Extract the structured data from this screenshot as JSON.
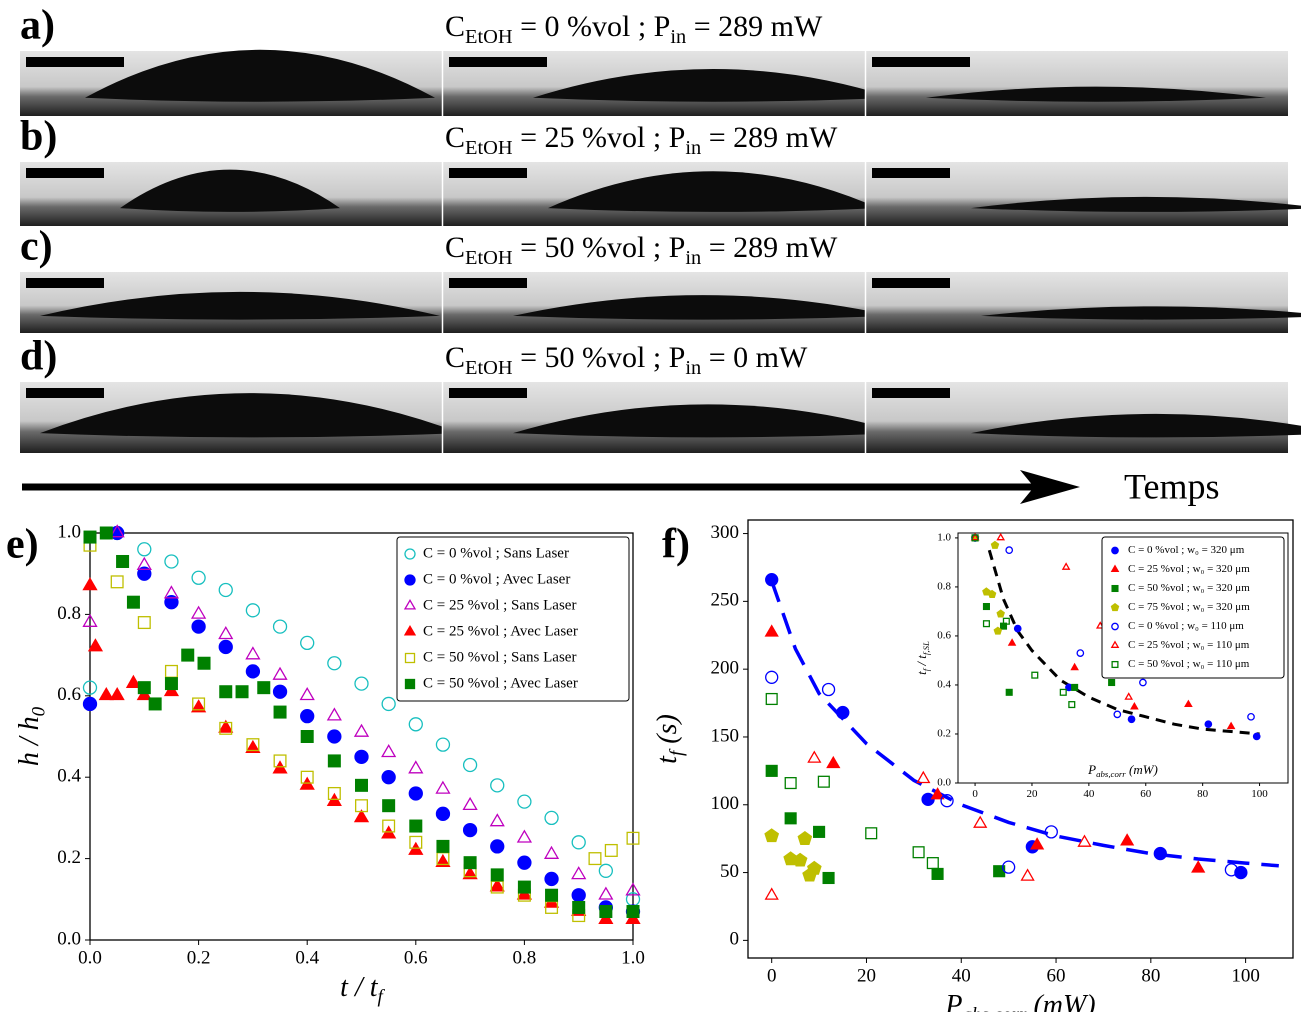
{
  "panels": [
    {
      "label": "a)",
      "title": [
        "C",
        "EtOH",
        " = 0 %vol ; P",
        "in",
        " = 289 mW"
      ]
    },
    {
      "label": "b)",
      "title": [
        "C",
        "EtOH",
        " = 25 %vol ; P",
        "in",
        " = 289 mW"
      ]
    },
    {
      "label": "c)",
      "title": [
        "C",
        "EtOH",
        " = 50 %vol ; P",
        "in",
        " = 289 mW"
      ]
    },
    {
      "label": "d)",
      "title": [
        "C",
        "EtOH",
        " = 50 %vol ; P",
        "in",
        " = 0 mW"
      ]
    }
  ],
  "arrow_label": "Temps",
  "chart_data": [
    {
      "type": "scatter",
      "label": "e)",
      "xlabel": [
        "t / t",
        "f"
      ],
      "ylabel": [
        "h / h",
        "0"
      ],
      "xlim": [
        0,
        1
      ],
      "ylim": [
        0,
        1
      ],
      "xticks": [
        {
          "value": 0,
          "label": "0.0"
        },
        {
          "value": 0.2,
          "label": "0.2"
        },
        {
          "value": 0.4,
          "label": "0.4"
        },
        {
          "value": 0.6,
          "label": "0.6"
        },
        {
          "value": 0.8,
          "label": "0.8"
        },
        {
          "value": 1,
          "label": "1.0"
        }
      ],
      "yticks": [
        {
          "value": 0,
          "label": "0.0"
        },
        {
          "value": 0.2,
          "label": "0.2"
        },
        {
          "value": 0.4,
          "label": "0.4"
        },
        {
          "value": 0.6,
          "label": "0.6"
        },
        {
          "value": 0.8,
          "label": "0.8"
        },
        {
          "value": 1,
          "label": "1.0"
        }
      ],
      "legend": "upper right",
      "series": [
        {
          "name": "C = 0 %vol ; Sans Laser",
          "color": "#17bfbf",
          "marker": "circle",
          "filled": false,
          "x": [
            0,
            0.05,
            0.1,
            0.15,
            0.2,
            0.25,
            0.3,
            0.35,
            0.4,
            0.45,
            0.5,
            0.55,
            0.6,
            0.65,
            0.7,
            0.75,
            0.8,
            0.85,
            0.9,
            0.95,
            1.0
          ],
          "values": [
            0.62,
            1.0,
            0.96,
            0.93,
            0.89,
            0.86,
            0.81,
            0.77,
            0.73,
            0.68,
            0.63,
            0.58,
            0.53,
            0.48,
            0.43,
            0.38,
            0.34,
            0.3,
            0.24,
            0.17,
            0.1
          ]
        },
        {
          "name": "C = 0 %vol ; Avec Laser",
          "color": "#0000ff",
          "marker": "circle",
          "filled": true,
          "x": [
            0,
            0.05,
            0.1,
            0.15,
            0.2,
            0.25,
            0.3,
            0.35,
            0.4,
            0.45,
            0.5,
            0.55,
            0.6,
            0.65,
            0.7,
            0.75,
            0.8,
            0.85,
            0.9,
            0.95,
            1.0
          ],
          "values": [
            0.58,
            1.0,
            0.9,
            0.83,
            0.77,
            0.72,
            0.66,
            0.61,
            0.55,
            0.5,
            0.45,
            0.4,
            0.36,
            0.31,
            0.27,
            0.23,
            0.19,
            0.15,
            0.11,
            0.08,
            0.07
          ]
        },
        {
          "name": "C = 25 %vol ; Sans Laser",
          "color": "#bf00bf",
          "marker": "triangle",
          "filled": false,
          "x": [
            0,
            0.05,
            0.1,
            0.15,
            0.2,
            0.25,
            0.3,
            0.35,
            0.4,
            0.45,
            0.5,
            0.55,
            0.6,
            0.65,
            0.7,
            0.75,
            0.8,
            0.85,
            0.9,
            0.95,
            1.0
          ],
          "values": [
            0.78,
            1.0,
            0.92,
            0.85,
            0.8,
            0.75,
            0.7,
            0.65,
            0.6,
            0.55,
            0.51,
            0.46,
            0.42,
            0.37,
            0.33,
            0.29,
            0.25,
            0.21,
            0.16,
            0.11,
            0.12
          ]
        },
        {
          "name": "C = 25 %vol ; Avec Laser",
          "color": "#ff0000",
          "marker": "triangle",
          "filled": true,
          "x": [
            0,
            0.01,
            0.03,
            0.05,
            0.08,
            0.1,
            0.15,
            0.2,
            0.25,
            0.3,
            0.35,
            0.4,
            0.45,
            0.5,
            0.55,
            0.6,
            0.65,
            0.7,
            0.75,
            0.8,
            0.85,
            0.9,
            0.95,
            1.0
          ],
          "values": [
            0.87,
            0.72,
            0.6,
            0.6,
            0.63,
            0.6,
            0.61,
            0.57,
            0.52,
            0.47,
            0.42,
            0.38,
            0.34,
            0.3,
            0.26,
            0.22,
            0.19,
            0.16,
            0.13,
            0.11,
            0.09,
            0.07,
            0.05,
            0.05
          ]
        },
        {
          "name": "C = 50 %vol ; Sans Laser",
          "color": "#bfbf00",
          "marker": "square",
          "filled": false,
          "x": [
            0,
            0.05,
            0.1,
            0.15,
            0.2,
            0.25,
            0.3,
            0.35,
            0.4,
            0.45,
            0.5,
            0.55,
            0.6,
            0.65,
            0.7,
            0.75,
            0.8,
            0.85,
            0.9,
            0.93,
            0.96,
            1.0
          ],
          "values": [
            0.97,
            0.88,
            0.78,
            0.66,
            0.58,
            0.52,
            0.48,
            0.44,
            0.4,
            0.36,
            0.33,
            0.28,
            0.24,
            0.2,
            0.17,
            0.13,
            0.11,
            0.08,
            0.06,
            0.2,
            0.22,
            0.25
          ]
        },
        {
          "name": "C = 50 %vol ; Avec Laser",
          "color": "#008000",
          "marker": "square",
          "filled": true,
          "x": [
            0,
            0.03,
            0.06,
            0.08,
            0.1,
            0.12,
            0.15,
            0.18,
            0.21,
            0.25,
            0.28,
            0.32,
            0.35,
            0.4,
            0.45,
            0.5,
            0.55,
            0.6,
            0.65,
            0.7,
            0.75,
            0.8,
            0.85,
            0.9,
            0.95,
            1.0
          ],
          "values": [
            0.99,
            1.0,
            0.93,
            0.83,
            0.62,
            0.58,
            0.63,
            0.7,
            0.68,
            0.61,
            0.61,
            0.62,
            0.56,
            0.5,
            0.44,
            0.38,
            0.33,
            0.28,
            0.23,
            0.19,
            0.16,
            0.13,
            0.11,
            0.08,
            0.07,
            0.07
          ]
        }
      ]
    },
    {
      "type": "scatter",
      "label": "f)",
      "xlabel": [
        "P",
        "abs,corr",
        " (mW)"
      ],
      "ylabel": [
        "t",
        "f",
        " (s)"
      ],
      "xlim": [
        -5,
        110
      ],
      "ylim": [
        -13,
        310
      ],
      "xticks": [
        0,
        20,
        40,
        60,
        80,
        100
      ],
      "yticks": [
        0,
        50,
        100,
        150,
        200,
        250,
        300
      ],
      "series": [
        {
          "color": "#0000ff",
          "linestyle": "dashed",
          "x": [
            0,
            5,
            10,
            20,
            30,
            40,
            50,
            60,
            70,
            80,
            90,
            100,
            107
          ],
          "values": [
            265,
            215,
            182,
            145,
            118,
            100,
            87,
            77,
            70,
            64,
            60,
            57,
            55
          ]
        },
        {
          "color": "#0000ff",
          "marker": "circle",
          "filled": true,
          "x": [
            0,
            15,
            33,
            55,
            82,
            99
          ],
          "values": [
            266,
            168,
            104,
            69,
            64,
            50
          ]
        },
        {
          "color": "#ff0000",
          "marker": "triangle",
          "filled": true,
          "x": [
            0,
            13,
            35,
            56,
            75,
            90
          ],
          "values": [
            227,
            130,
            107,
            70,
            73,
            53
          ]
        },
        {
          "color": "#008000",
          "marker": "square",
          "filled": true,
          "x": [
            0,
            4,
            10,
            12,
            35,
            48
          ],
          "values": [
            125,
            90,
            80,
            46,
            49,
            51
          ]
        },
        {
          "color": "#bfbf00",
          "marker": "pentagon",
          "filled": true,
          "x": [
            0,
            4,
            7,
            6,
            9,
            8
          ],
          "values": [
            77,
            60,
            75,
            59,
            53,
            48
          ]
        },
        {
          "color": "#0000ff",
          "marker": "circle",
          "filled": false,
          "x": [
            0,
            12,
            37,
            50,
            59,
            97
          ],
          "values": [
            194,
            185,
            103,
            54,
            80,
            52
          ]
        },
        {
          "color": "#ff0000",
          "marker": "triangle",
          "filled": false,
          "x": [
            0,
            9,
            32,
            44,
            54,
            66
          ],
          "values": [
            33,
            134,
            119,
            86,
            47,
            72
          ]
        },
        {
          "color": "#008000",
          "marker": "square",
          "filled": false,
          "x": [
            0,
            4,
            11,
            21,
            31,
            34
          ],
          "values": [
            178,
            116,
            117,
            79,
            65,
            57
          ]
        }
      ]
    },
    {
      "type": "scatter",
      "xlabel": [
        "P",
        "abs,corr",
        " (mW)"
      ],
      "ylabel": [
        "t",
        "f",
        " / t",
        "f,SL"
      ],
      "xlim": [
        -6,
        110
      ],
      "ylim": [
        0,
        1.02
      ],
      "xticks": [
        0,
        20,
        40,
        60,
        80,
        100
      ],
      "yticks": [
        {
          "value": 0,
          "label": "0.0"
        },
        {
          "value": 0.2,
          "label": "0.2"
        },
        {
          "value": 0.4,
          "label": "0.4"
        },
        {
          "value": 0.6,
          "label": "0.6"
        },
        {
          "value": 0.8,
          "label": "0.8"
        },
        {
          "value": 1,
          "label": "1.0"
        }
      ],
      "legend": "upper right",
      "series": [
        {
          "color": "#000000",
          "linestyle": "dashed",
          "x": [
            5,
            10,
            15,
            20,
            30,
            40,
            50,
            60,
            70,
            80,
            100
          ],
          "values": [
            0.95,
            0.75,
            0.62,
            0.54,
            0.42,
            0.35,
            0.3,
            0.27,
            0.24,
            0.22,
            0.2
          ]
        },
        {
          "name": "C = 0 %vol ; w₀ = 320 μm",
          "color": "#0000ff",
          "marker": "circle",
          "filled": true,
          "x": [
            0,
            15,
            33,
            55,
            82,
            99
          ],
          "values": [
            1.0,
            0.63,
            0.39,
            0.26,
            0.24,
            0.19
          ]
        },
        {
          "name": "C = 25 %vol ; w₀ = 320 μm",
          "color": "#ff0000",
          "marker": "triangle",
          "filled": true,
          "x": [
            0,
            13,
            35,
            56,
            75,
            90
          ],
          "values": [
            1.0,
            0.57,
            0.47,
            0.31,
            0.32,
            0.23
          ]
        },
        {
          "name": "C = 50 %vol ; w₀ = 320 μm",
          "color": "#008000",
          "marker": "square",
          "filled": true,
          "x": [
            0,
            4,
            10,
            12,
            35,
            48
          ],
          "values": [
            1.0,
            0.72,
            0.64,
            0.37,
            0.39,
            0.41
          ]
        },
        {
          "name": "C = 75 %vol ; w₀ = 320 μm",
          "color": "#bfbf00",
          "marker": "pentagon",
          "filled": true,
          "x": [
            0,
            4,
            7,
            6,
            9,
            8
          ],
          "values": [
            1.0,
            0.78,
            0.97,
            0.77,
            0.69,
            0.62
          ]
        },
        {
          "name": "C = 0 %vol ; w₀ = 110 μm",
          "color": "#0000ff",
          "marker": "circle",
          "filled": false,
          "x": [
            0,
            12,
            37,
            50,
            59,
            97
          ],
          "values": [
            1.0,
            0.95,
            0.53,
            0.28,
            0.41,
            0.27
          ]
        },
        {
          "name": "C = 25 %vol ; w₀ = 110 μm",
          "color": "#ff0000",
          "marker": "triangle",
          "filled": false,
          "x": [
            0,
            9,
            32,
            44,
            54,
            66
          ],
          "values": [
            1.0,
            1.0,
            0.88,
            0.64,
            0.35,
            0.53
          ]
        },
        {
          "name": "C = 50 %vol ; w₀ = 110 μm",
          "color": "#008000",
          "marker": "square",
          "filled": false,
          "x": [
            0,
            4,
            11,
            21,
            31,
            34
          ],
          "values": [
            1.0,
            0.65,
            0.66,
            0.44,
            0.37,
            0.32
          ]
        }
      ]
    }
  ]
}
